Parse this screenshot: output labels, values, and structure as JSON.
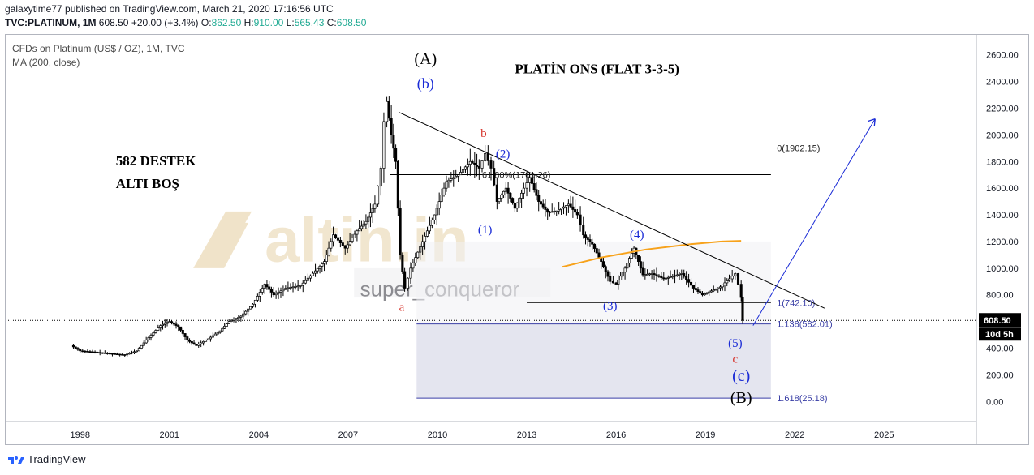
{
  "header": {
    "publisher_line": "galaxytime77 published on TradingView.com, March 21, 2020 17:16:56 UTC",
    "publisher_user": "galaxytime77",
    "symbol": "TVC:PLATINUM, 1M",
    "last": "608.50",
    "change": "+20.00 (+3.4%)",
    "o_label": "O:",
    "o_val": "862.50",
    "h_label": "H:",
    "h_val": "910.00",
    "l_label": "L:",
    "l_val": "565.43",
    "c_label": "C:",
    "c_val": "608.50"
  },
  "legend": {
    "title": "CFDs on Platinum (US$ / OZ), 1M, TVC",
    "ma": "MA (200, close)"
  },
  "footer": {
    "brand": "TradingView"
  },
  "colors": {
    "candle": "#000000",
    "ma_line": "#f7a21b",
    "trend_line": "#000000",
    "projection": "#1a2bd6",
    "wave_blue": "#1a2bd6",
    "wave_red": "#d6322a",
    "fib_zone": "#dfe0ec",
    "watermark": "#d9b877"
  },
  "chart_data": {
    "type": "candlestick",
    "title": "CFDs on Platinum (US$ / OZ), 1M, TVC",
    "ylim": [
      -150,
      2750
    ],
    "xlim": [
      1995.5,
      2028.1
    ],
    "y_ticks": [
      "0.00",
      "200.00",
      "400.00",
      "600.00",
      "800.00",
      "1000.00",
      "1200.00",
      "1400.00",
      "1600.00",
      "1800.00",
      "2000.00",
      "2200.00",
      "2400.00",
      "2600.00"
    ],
    "y_tick_values": [
      0,
      200,
      400,
      600,
      800,
      1000,
      1200,
      1400,
      1600,
      1800,
      2000,
      2200,
      2400,
      2600
    ],
    "x_ticks": [
      "1998",
      "2001",
      "2004",
      "2007",
      "2010",
      "2013",
      "2016",
      "2019",
      "2022",
      "2025"
    ],
    "x_tick_values": [
      1998,
      2001,
      2004,
      2007,
      2010,
      2013,
      2016,
      2019,
      2022,
      2025
    ],
    "price_series": [
      [
        1997.7,
        420
      ],
      [
        1998.0,
        380
      ],
      [
        1998.5,
        370
      ],
      [
        1999.0,
        360
      ],
      [
        1999.5,
        350
      ],
      [
        1999.9,
        380
      ],
      [
        2000.3,
        480
      ],
      [
        2000.7,
        570
      ],
      [
        2001.0,
        600
      ],
      [
        2001.3,
        560
      ],
      [
        2001.6,
        460
      ],
      [
        2001.9,
        420
      ],
      [
        2002.3,
        470
      ],
      [
        2002.7,
        530
      ],
      [
        2003.0,
        600
      ],
      [
        2003.4,
        640
      ],
      [
        2003.8,
        730
      ],
      [
        2004.2,
        880
      ],
      [
        2004.5,
        800
      ],
      [
        2004.9,
        850
      ],
      [
        2005.4,
        870
      ],
      [
        2005.9,
        980
      ],
      [
        2006.2,
        1050
      ],
      [
        2006.5,
        1250
      ],
      [
        2006.9,
        1150
      ],
      [
        2007.3,
        1280
      ],
      [
        2007.6,
        1350
      ],
      [
        2007.9,
        1480
      ],
      [
        2008.1,
        1750
      ],
      [
        2008.2,
        2100
      ],
      [
        2008.3,
        2250
      ],
      [
        2008.45,
        2000
      ],
      [
        2008.6,
        1800
      ],
      [
        2008.75,
        1100
      ],
      [
        2008.9,
        850
      ],
      [
        2009.1,
        1000
      ],
      [
        2009.5,
        1200
      ],
      [
        2009.9,
        1400
      ],
      [
        2010.3,
        1650
      ],
      [
        2010.7,
        1700
      ],
      [
        2011.1,
        1800
      ],
      [
        2011.4,
        1750
      ],
      [
        2011.6,
        1860
      ],
      [
        2011.8,
        1750
      ],
      [
        2012.0,
        1500
      ],
      [
        2012.3,
        1600
      ],
      [
        2012.6,
        1450
      ],
      [
        2012.9,
        1600
      ],
      [
        2013.1,
        1680
      ],
      [
        2013.4,
        1500
      ],
      [
        2013.7,
        1420
      ],
      [
        2014.0,
        1430
      ],
      [
        2014.4,
        1480
      ],
      [
        2014.7,
        1400
      ],
      [
        2014.9,
        1250
      ],
      [
        2015.2,
        1180
      ],
      [
        2015.5,
        1050
      ],
      [
        2015.8,
        900
      ],
      [
        2016.0,
        880
      ],
      [
        2016.3,
        1000
      ],
      [
        2016.6,
        1150
      ],
      [
        2016.9,
        950
      ],
      [
        2017.2,
        960
      ],
      [
        2017.6,
        920
      ],
      [
        2017.9,
        940
      ],
      [
        2018.2,
        960
      ],
      [
        2018.6,
        850
      ],
      [
        2018.9,
        800
      ],
      [
        2019.2,
        830
      ],
      [
        2019.5,
        860
      ],
      [
        2019.8,
        920
      ],
      [
        2020.0,
        960
      ],
      [
        2020.1,
        880
      ],
      [
        2020.2,
        780
      ],
      [
        2020.25,
        608.5
      ]
    ],
    "ma_200": [
      [
        2014.2,
        1010
      ],
      [
        2015.5,
        1080
      ],
      [
        2017,
        1140
      ],
      [
        2018.5,
        1180
      ],
      [
        2019.5,
        1200
      ],
      [
        2020.2,
        1205
      ]
    ],
    "trendline": [
      [
        2008.7,
        2170
      ],
      [
        2023.0,
        700
      ]
    ],
    "projection_arrow": [
      [
        2020.6,
        570
      ],
      [
        2024.7,
        2120
      ]
    ],
    "current_price": 608.5,
    "current_price_label": "608.50",
    "countdown_label": "10d 5h",
    "fib_levels": [
      {
        "label": "0(1902.15)",
        "value": 1902.15,
        "x_from": 2008.4
      },
      {
        "label": "61.80%(1701.26)",
        "value": 1701.26,
        "x_from": 2008.4
      },
      {
        "label": "1(742.10)",
        "value": 742.1,
        "x_from": 2013.0
      },
      {
        "label": "1.138(582.01)",
        "value": 582.01,
        "x_from": 2009.3
      },
      {
        "label": "1.618(25.18)",
        "value": 25.18,
        "x_from": 2009.3
      }
    ],
    "fib_zone": {
      "x_from": 2009.3,
      "x_to": 2021.2,
      "y_from": 25.18,
      "y_to": 582.01
    },
    "annotations": [
      {
        "text": "(A)",
        "x": 2009.6,
        "y": 2530,
        "color": "#000000",
        "size": 20,
        "bold": false
      },
      {
        "text": "(b)",
        "x": 2009.6,
        "y": 2350,
        "color": "#1a2bd6",
        "size": 18,
        "bold": false
      },
      {
        "text": "b",
        "x": 2011.55,
        "y": 1985,
        "color": "#d6322a",
        "size": 15,
        "bold": false
      },
      {
        "text": "(2)",
        "x": 2012.2,
        "y": 1830,
        "color": "#1a2bd6",
        "size": 15,
        "bold": false
      },
      {
        "text": "(1)",
        "x": 2011.6,
        "y": 1260,
        "color": "#1a2bd6",
        "size": 15,
        "bold": false
      },
      {
        "text": "(4)",
        "x": 2016.7,
        "y": 1225,
        "color": "#1a2bd6",
        "size": 15,
        "bold": false
      },
      {
        "text": "(3)",
        "x": 2015.8,
        "y": 690,
        "color": "#1a2bd6",
        "size": 15,
        "bold": false
      },
      {
        "text": "a",
        "x": 2008.8,
        "y": 680,
        "color": "#d6322a",
        "size": 15,
        "bold": false
      },
      {
        "text": "(5)",
        "x": 2020.0,
        "y": 410,
        "color": "#1a2bd6",
        "size": 15,
        "bold": false
      },
      {
        "text": "c",
        "x": 2020.0,
        "y": 290,
        "color": "#d6322a",
        "size": 15,
        "bold": false
      },
      {
        "text": "(c)",
        "x": 2020.2,
        "y": 155,
        "color": "#1a2bd6",
        "size": 20,
        "bold": false
      },
      {
        "text": "(B)",
        "x": 2020.2,
        "y": -10,
        "color": "#000000",
        "size": 20,
        "bold": false
      },
      {
        "text": "PLATİN ONS   (FLAT  3-3-5)",
        "x": 2012.6,
        "y": 2460,
        "color": "#000000",
        "size": 17,
        "bold": true
      },
      {
        "text": "582 DESTEK",
        "x": 1999.2,
        "y": 1770,
        "color": "#000000",
        "size": 17,
        "bold": true
      },
      {
        "text": "ALTI BOŞ",
        "x": 1999.2,
        "y": 1600,
        "color": "#000000",
        "size": 17,
        "bold": true
      }
    ],
    "watermark_text": "altin.in",
    "watermark_user": "super_conqueror"
  }
}
